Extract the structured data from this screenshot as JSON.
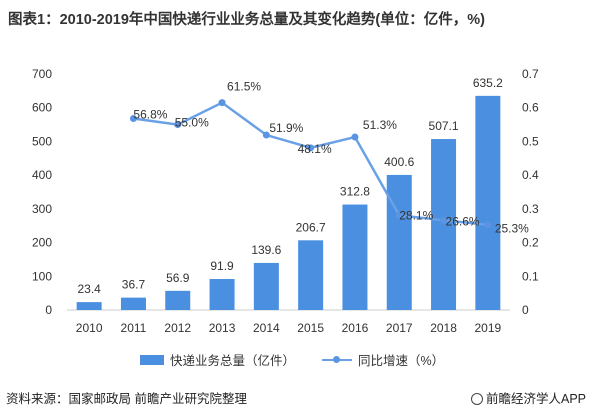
{
  "title": "图表1：2010-2019年中国快递行业业务总量及其变化趋势(单位：亿件，%)",
  "source": "资料来源：国家邮政局 前瞻产业研究院整理",
  "brand": "@前瞻经济学人APP",
  "colors": {
    "bar": "#4a8fe0",
    "line": "#6aa0e6",
    "point": "#5b94e3",
    "axis": "#cccccc",
    "text": "#333333"
  },
  "chart_data": {
    "type": "bar",
    "categories": [
      "2010",
      "2011",
      "2012",
      "2013",
      "2014",
      "2015",
      "2016",
      "2017",
      "2018",
      "2019"
    ],
    "series": [
      {
        "name": "快递业务总量（亿件）",
        "type": "bar",
        "axis": "left",
        "values": [
          23.4,
          36.7,
          56.9,
          91.9,
          139.6,
          206.7,
          312.8,
          400.6,
          507.1,
          635.2
        ],
        "labels": [
          "23.4",
          "36.7",
          "56.9",
          "91.9",
          "139.6",
          "206.7",
          "312.8",
          "400.6",
          "507.1",
          "635.2"
        ]
      },
      {
        "name": "同比增速（%）",
        "type": "line",
        "axis": "right",
        "values": [
          null,
          0.568,
          0.55,
          0.615,
          0.519,
          0.481,
          0.513,
          0.281,
          0.266,
          0.253
        ],
        "labels": [
          "",
          "56.8%",
          "55.0%",
          "61.5%",
          "51.9%",
          "48.1%",
          "51.3%",
          "28.1%",
          "26.6%",
          "25.3%"
        ]
      }
    ],
    "y_left": {
      "min": 0,
      "max": 700,
      "ticks": [
        "0",
        "100",
        "200",
        "300",
        "400",
        "500",
        "600",
        "700"
      ]
    },
    "y_right": {
      "min": 0,
      "max": 0.7,
      "ticks": [
        "0",
        "0.1",
        "0.2",
        "0.3",
        "0.4",
        "0.5",
        "0.6",
        "0.7"
      ]
    },
    "grid": false,
    "legend": "bottom"
  }
}
